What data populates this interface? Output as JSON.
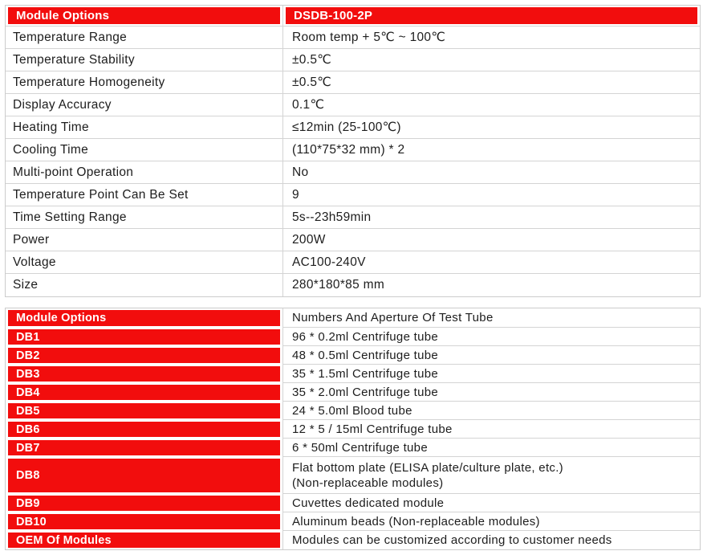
{
  "colors": {
    "accent_red": "#f20d0d",
    "header_text": "#ffffff",
    "body_text": "#1d1d1d",
    "border": "#d4d4d4"
  },
  "spec_table": {
    "header": {
      "col1": "Module Options",
      "col2": "DSDB-100-2P"
    },
    "rows": [
      {
        "label": "Temperature Range",
        "value": "Room temp + 5℃ ~ 100℃"
      },
      {
        "label": "Temperature Stability",
        "value": "±0.5℃"
      },
      {
        "label": "Temperature Homogeneity",
        "value": "±0.5℃"
      },
      {
        "label": "Display Accuracy",
        "value": "0.1℃"
      },
      {
        "label": "Heating Time",
        "value": "≤12min (25-100℃)"
      },
      {
        "label": "Cooling Time",
        "value": "(110*75*32 mm) * 2"
      },
      {
        "label": "Multi-point Operation",
        "value": "No"
      },
      {
        "label": "Temperature Point Can Be Set",
        "value": "9"
      },
      {
        "label": "Time Setting Range",
        "value": "5s--23h59min"
      },
      {
        "label": "Power",
        "value": "200W"
      },
      {
        "label": "Voltage",
        "value": "AC100-240V"
      },
      {
        "label": "Size",
        "value": "280*180*85 mm"
      }
    ]
  },
  "module_table": {
    "header": {
      "col1": "Module Options",
      "col2": "Numbers And Aperture Of Test Tube"
    },
    "rows": [
      {
        "label": "DB1",
        "value": "96 * 0.2ml Centrifuge tube"
      },
      {
        "label": "DB2",
        "value": "48 * 0.5ml Centrifuge tube"
      },
      {
        "label": "DB3",
        "value": "35 * 1.5ml Centrifuge tube"
      },
      {
        "label": "DB4",
        "value": "35 * 2.0ml Centrifuge tube"
      },
      {
        "label": "DB5",
        "value": "24 * 5.0ml Blood tube"
      },
      {
        "label": "DB6",
        "value": "12 * 5 / 15ml Centrifuge tube"
      },
      {
        "label": "DB7",
        "value": "6 * 50ml Centrifuge tube"
      },
      {
        "label": "DB8",
        "value": "Flat bottom plate (ELISA plate/culture plate, etc.)\n(Non-replaceable modules)"
      },
      {
        "label": "DB9",
        "value": "Cuvettes dedicated module"
      },
      {
        "label": "DB10",
        "value": "Aluminum beads (Non-replaceable modules)"
      },
      {
        "label": "OEM Of Modules",
        "value": "Modules can be customized according to customer needs"
      }
    ]
  }
}
